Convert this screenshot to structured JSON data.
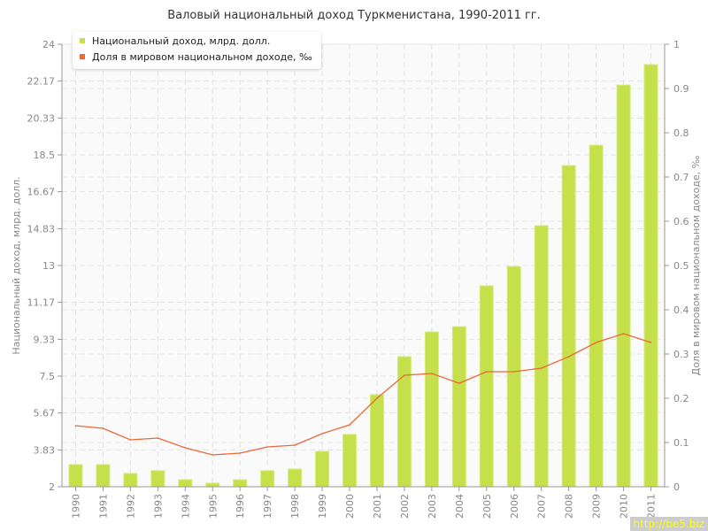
{
  "chart_data": {
    "type": "bar+line",
    "title": "Валовый национальный доход Туркменистана, 1990-2011 гг.",
    "ylabel": "Национальный доход, млрд. долл.",
    "y2label": "Доля в мировом национальном доходе, ‰",
    "ylim": [
      2,
      24
    ],
    "y2lim": [
      0,
      1
    ],
    "yticks": [
      "2",
      "3.83",
      "5.67",
      "7.5",
      "9.33",
      "11.17",
      "13",
      "14.83",
      "16.67",
      "18.5",
      "20.33",
      "22.17",
      "24"
    ],
    "y2ticks": [
      "0",
      "0.1",
      "0.2",
      "0.3",
      "0.4",
      "0.5",
      "0.6",
      "0.7",
      "0.8",
      "0.9",
      "1"
    ],
    "categories": [
      "1990",
      "1991",
      "1992",
      "1993",
      "1994",
      "1995",
      "1996",
      "1997",
      "1998",
      "1999",
      "2000",
      "2001",
      "2002",
      "2003",
      "2004",
      "2005",
      "2006",
      "2007",
      "2008",
      "2009",
      "2010",
      "2011"
    ],
    "legend_position": "top-left",
    "grid": true,
    "series": [
      {
        "name": "Национальный доход, млрд. долл.",
        "type": "bar",
        "axis": "left",
        "color": "#c5e04a",
        "values": [
          3.1,
          3.1,
          2.66,
          2.8,
          2.35,
          2.18,
          2.35,
          2.8,
          2.88,
          3.76,
          4.6,
          6.58,
          8.47,
          9.7,
          9.96,
          11.99,
          12.95,
          14.98,
          17.97,
          18.98,
          21.97,
          22.99
        ]
      },
      {
        "name": "Доля в мировом национальном доходе, ‰",
        "type": "line",
        "axis": "right",
        "color": "#e8693a",
        "values": [
          0.138,
          0.132,
          0.106,
          0.11,
          0.088,
          0.072,
          0.076,
          0.09,
          0.094,
          0.12,
          0.14,
          0.2,
          0.252,
          0.256,
          0.234,
          0.26,
          0.26,
          0.268,
          0.294,
          0.326,
          0.346,
          0.326
        ]
      }
    ]
  },
  "watermark": "http://be5.biz"
}
